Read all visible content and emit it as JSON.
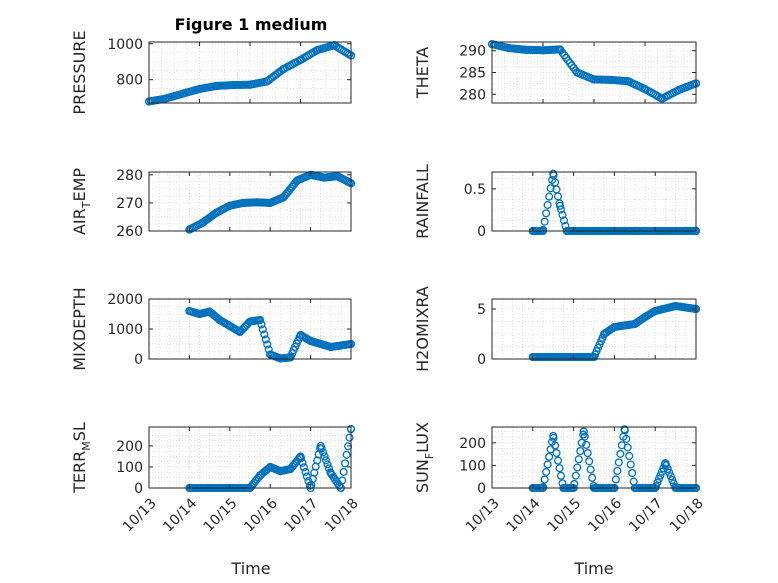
{
  "figure": {
    "title": "Figure 1 medium",
    "xlabel": "Time"
  },
  "colors": {
    "marker": "#0072BD",
    "axis": "#262626",
    "grid": "#d9d9d9"
  },
  "chart_data": [
    {
      "id": "pressure",
      "type": "scatter",
      "title": "Figure 1 medium",
      "xlabel": "",
      "ylabel": "PRESSURE",
      "ylabel_sub": "",
      "xlim": [
        "10/14 00:00",
        "10/18 00:00"
      ],
      "ylim": [
        670,
        1010
      ],
      "yticks": [
        800,
        1000
      ],
      "xticks": [],
      "x_dates": [
        "10/14 00:00",
        "10/14 08:00",
        "10/14 16:00",
        "10/15 00:00",
        "10/15 08:00",
        "10/15 16:00",
        "10/16 00:00",
        "10/16 08:00",
        "10/16 16:00",
        "10/17 00:00",
        "10/17 08:00",
        "10/17 16:00",
        "10/18 00:00"
      ],
      "y": [
        678,
        695,
        722,
        748,
        765,
        770,
        772,
        790,
        860,
        910,
        965,
        992,
        935
      ]
    },
    {
      "id": "theta",
      "type": "scatter",
      "xlabel": "",
      "ylabel": "THETA",
      "ylabel_sub": "",
      "xlim": [
        "10/14 00:00",
        "10/18 00:00"
      ],
      "ylim": [
        278,
        292
      ],
      "yticks": [
        280,
        285,
        290
      ],
      "xticks": [],
      "x_dates": [
        "10/14 00:00",
        "10/14 08:00",
        "10/14 16:00",
        "10/15 00:00",
        "10/15 08:00",
        "10/15 16:00",
        "10/16 00:00",
        "10/16 08:00",
        "10/16 16:00",
        "10/17 00:00",
        "10/17 08:00",
        "10/17 16:00",
        "10/18 00:00"
      ],
      "y": [
        291.5,
        290.6,
        290.2,
        290.1,
        290.3,
        285,
        283.4,
        283.3,
        283,
        281.2,
        279,
        281,
        282.5
      ]
    },
    {
      "id": "airtemp",
      "type": "scatter",
      "xlabel": "",
      "ylabel": "AIR",
      "ylabel_sub": "T",
      "ylabel_suffix": "EMP",
      "xlim": [
        "10/13 00:00",
        "10/18 00:00"
      ],
      "ylim": [
        260,
        281
      ],
      "yticks": [
        260,
        270,
        280
      ],
      "xticks": [],
      "x_dates": [
        "10/14 00:00",
        "10/14 08:00",
        "10/14 16:00",
        "10/15 00:00",
        "10/15 08:00",
        "10/15 16:00",
        "10/16 00:00",
        "10/16 08:00",
        "10/16 16:00",
        "10/17 00:00",
        "10/17 08:00",
        "10/17 16:00",
        "10/18 00:00"
      ],
      "y": [
        260.5,
        263,
        266.5,
        269,
        270,
        270.2,
        270,
        272,
        278,
        280,
        279,
        279.5,
        277
      ]
    },
    {
      "id": "rainfall",
      "type": "scatter",
      "xlabel": "",
      "ylabel": "RAINFALL",
      "ylabel_sub": "",
      "xlim": [
        "10/13 00:00",
        "10/18 00:00"
      ],
      "ylim": [
        0,
        0.7
      ],
      "yticks": [
        0,
        0.5
      ],
      "xticks": [],
      "x_dates": [
        "10/14 00:00",
        "10/14 06:00",
        "10/14 12:00",
        "10/14 16:00",
        "10/14 20:00",
        "10/15 00:00",
        "10/15 12:00",
        "10/16 00:00",
        "10/16 12:00",
        "10/17 00:00",
        "10/17 12:00",
        "10/18 00:00"
      ],
      "y": [
        0,
        0,
        0.68,
        0.3,
        0,
        0,
        0,
        0,
        0,
        0,
        0,
        0
      ]
    },
    {
      "id": "mixdepth",
      "type": "scatter",
      "xlabel": "",
      "ylabel": "MIXDEPTH",
      "ylabel_sub": "",
      "xlim": [
        "10/13 00:00",
        "10/18 00:00"
      ],
      "ylim": [
        0,
        2000
      ],
      "yticks": [
        0,
        1000,
        2000
      ],
      "xticks": [],
      "x_dates": [
        "10/14 00:00",
        "10/14 06:00",
        "10/14 12:00",
        "10/14 18:00",
        "10/15 00:00",
        "10/15 06:00",
        "10/15 12:00",
        "10/15 18:00",
        "10/16 00:00",
        "10/16 06:00",
        "10/16 12:00",
        "10/16 18:00",
        "10/17 00:00",
        "10/17 12:00",
        "10/18 00:00"
      ],
      "y": [
        1600,
        1500,
        1580,
        1300,
        1100,
        900,
        1250,
        1300,
        150,
        20,
        50,
        800,
        600,
        400,
        500
      ]
    },
    {
      "id": "h2omixra",
      "type": "scatter",
      "xlabel": "",
      "ylabel": "H2OMIXRA",
      "ylabel_sub": "",
      "xlim": [
        "10/13 00:00",
        "10/18 00:00"
      ],
      "ylim": [
        0,
        6
      ],
      "yticks": [
        0,
        5
      ],
      "xticks": [],
      "x_dates": [
        "10/14 00:00",
        "10/14 12:00",
        "10/15 00:00",
        "10/15 12:00",
        "10/15 18:00",
        "10/16 00:00",
        "10/16 12:00",
        "10/16 18:00",
        "10/17 00:00",
        "10/17 12:00",
        "10/18 00:00"
      ],
      "y": [
        0.2,
        0.2,
        0.2,
        0.2,
        2.5,
        3.2,
        3.5,
        4.2,
        4.8,
        5.3,
        5
      ]
    },
    {
      "id": "terrmsl",
      "type": "scatter",
      "xlabel": "Time",
      "ylabel": "TERR",
      "ylabel_sub": "M",
      "ylabel_suffix": "SL",
      "xlim": [
        "10/13 00:00",
        "10/18 00:00"
      ],
      "ylim": [
        0,
        290
      ],
      "yticks": [
        0,
        100,
        200
      ],
      "xticks": [
        "10/13",
        "10/14",
        "10/15",
        "10/16",
        "10/17",
        "10/18"
      ],
      "x_dates": [
        "10/14 00:00",
        "10/14 12:00",
        "10/15 00:00",
        "10/15 12:00",
        "10/15 18:00",
        "10/16 00:00",
        "10/16 06:00",
        "10/16 12:00",
        "10/16 18:00",
        "10/17 00:00",
        "10/17 06:00",
        "10/17 12:00",
        "10/17 18:00",
        "10/18 00:00"
      ],
      "y": [
        0,
        0,
        0,
        0,
        60,
        100,
        80,
        90,
        150,
        0,
        200,
        70,
        0,
        280
      ]
    },
    {
      "id": "sunflux",
      "type": "scatter",
      "xlabel": "Time",
      "ylabel": "SUN",
      "ylabel_sub": "F",
      "ylabel_suffix": "LUX",
      "xlim": [
        "10/13 00:00",
        "10/18 00:00"
      ],
      "ylim": [
        0,
        270
      ],
      "yticks": [
        0,
        100,
        200
      ],
      "xticks": [
        "10/13",
        "10/14",
        "10/15",
        "10/16",
        "10/17",
        "10/18"
      ],
      "x_dates": [
        "10/14 00:00",
        "10/14 06:00",
        "10/14 12:00",
        "10/14 18:00",
        "10/15 00:00",
        "10/15 06:00",
        "10/15 12:00",
        "10/15 18:00",
        "10/16 00:00",
        "10/16 06:00",
        "10/16 12:00",
        "10/16 18:00",
        "10/17 00:00",
        "10/17 06:00",
        "10/17 12:00",
        "10/18 00:00"
      ],
      "y": [
        0,
        0,
        230,
        0,
        0,
        250,
        0,
        0,
        0,
        260,
        0,
        0,
        0,
        110,
        0,
        0
      ]
    }
  ]
}
